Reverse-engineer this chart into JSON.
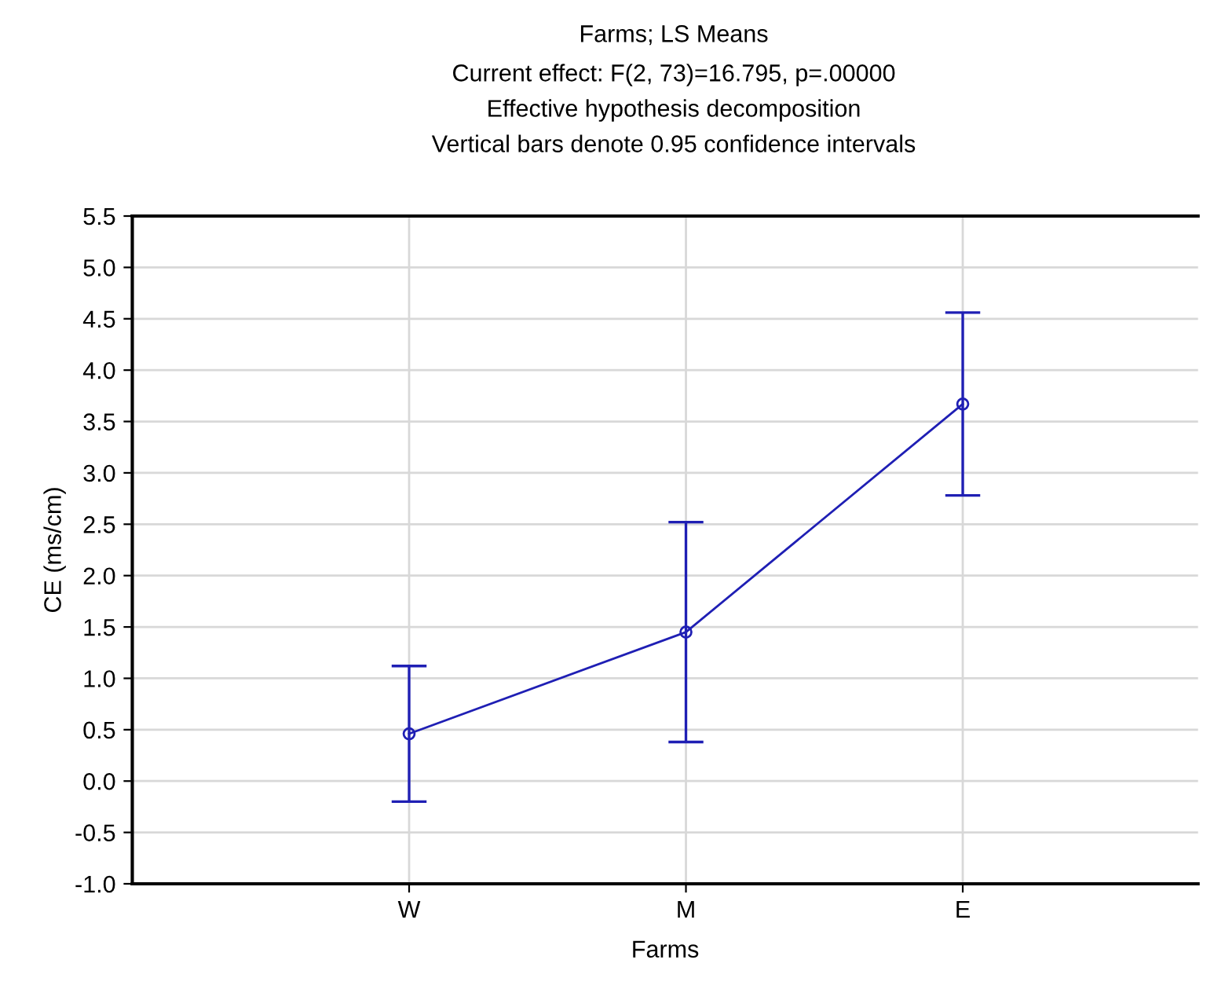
{
  "chart_data": {
    "type": "line",
    "title": "Farms; LS Means",
    "subtitle": "Current effect: F(2, 73)=16.795, p=.00000\nEffective hypothesis decomposition\nVertical bars denote 0.95 confidence intervals",
    "xlabel": "Farms",
    "ylabel": "CE (ms/cm)",
    "categories": [
      "W",
      "M",
      "E"
    ],
    "series": [
      {
        "color": "#1f1fb4",
        "values": [
          0.46,
          1.45,
          3.67
        ],
        "errors": [
          0.66,
          1.07,
          0.89
        ]
      }
    ],
    "ylim": [
      -1.0,
      5.5
    ],
    "yticks": [
      {
        "value": -1.0,
        "label": "-1.0"
      },
      {
        "value": -0.5,
        "label": "-0.5"
      },
      {
        "value": 0.0,
        "label": "0.0"
      },
      {
        "value": 0.5,
        "label": "0.5"
      },
      {
        "value": 1.0,
        "label": "1.0"
      },
      {
        "value": 1.5,
        "label": "1.5"
      },
      {
        "value": 2.0,
        "label": "2.0"
      },
      {
        "value": 2.5,
        "label": "2.5"
      },
      {
        "value": 3.0,
        "label": "3.0"
      },
      {
        "value": 3.5,
        "label": "3.5"
      },
      {
        "value": 4.0,
        "label": "4.0"
      },
      {
        "value": 4.5,
        "label": "4.5"
      },
      {
        "value": 5.0,
        "label": "5.0"
      },
      {
        "value": 5.5,
        "label": "5.5"
      }
    ],
    "grid": true,
    "marker": "circle",
    "line_style": "solid",
    "legend": false
  }
}
